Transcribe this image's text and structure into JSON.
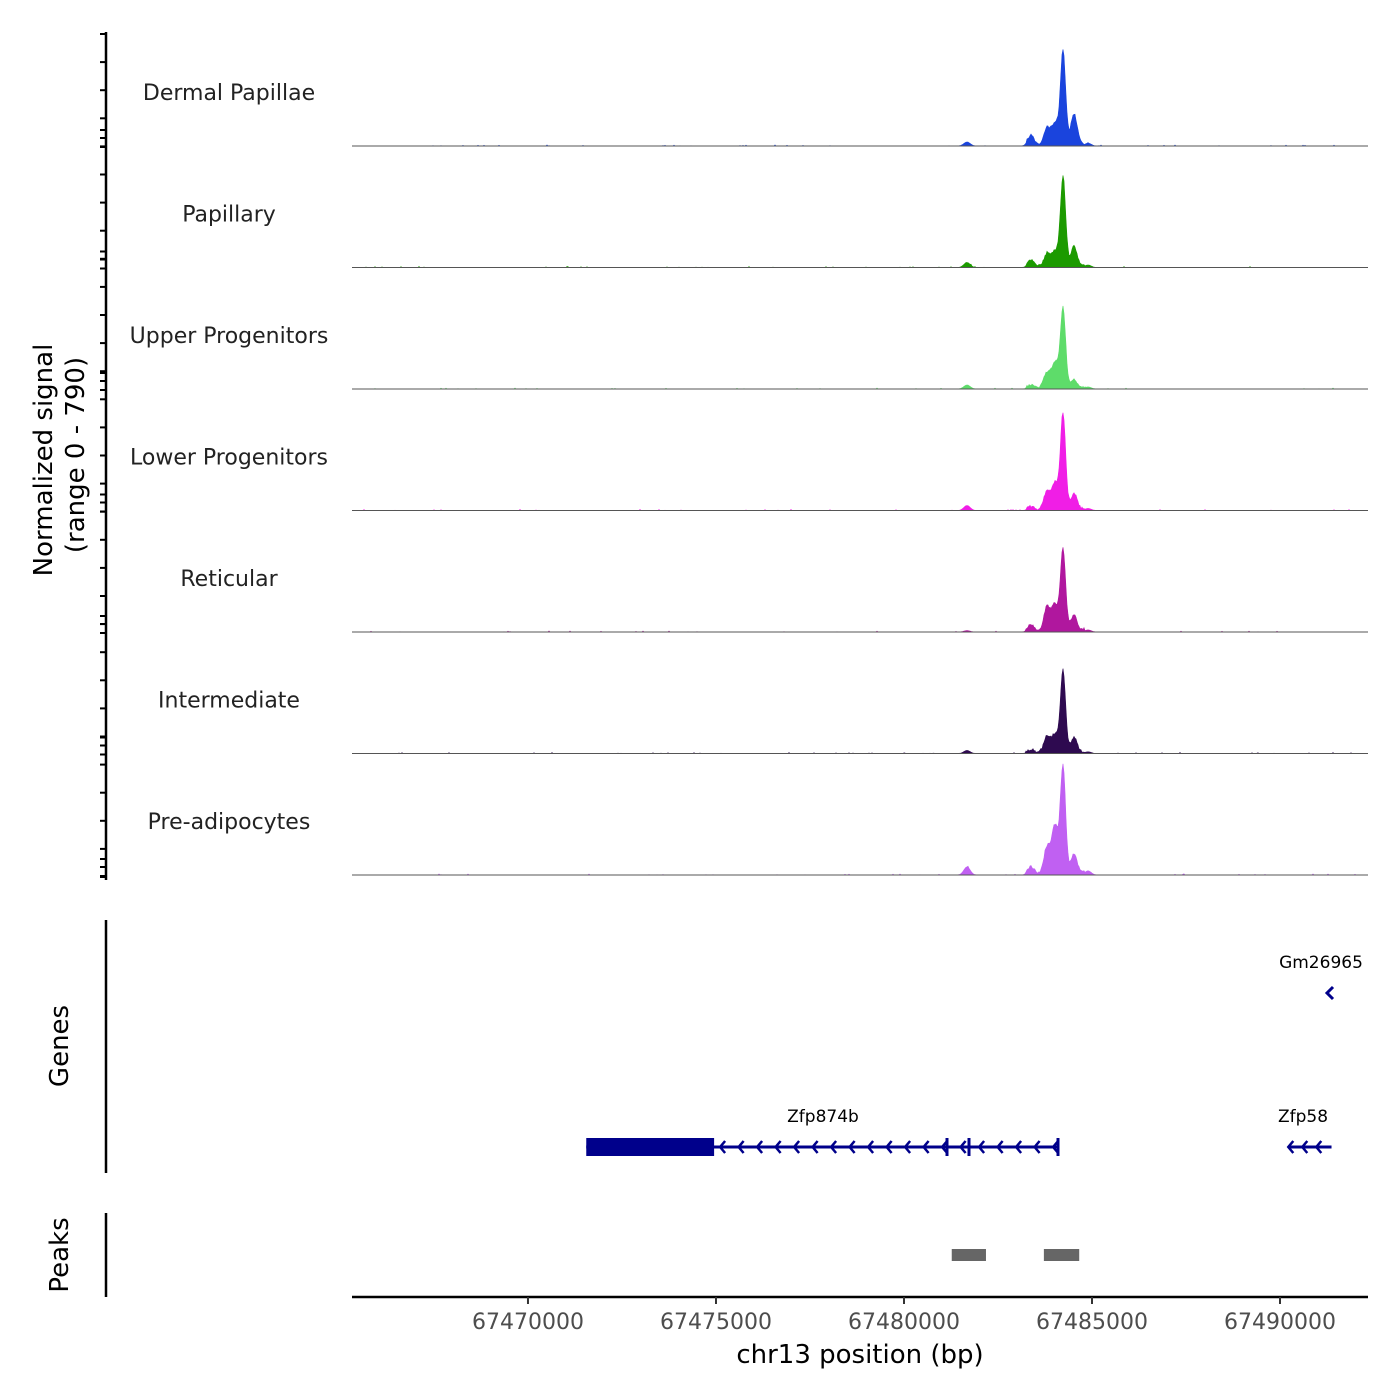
{
  "chart_data": {
    "type": "area",
    "title": "",
    "ylabel": "Normalized signal",
    "ylabel_sub": "(range 0 - 790)",
    "xlabel": "chr13 position (bp)",
    "ylim": [
      0,
      790
    ],
    "xlim": [
      67465320,
      67492340
    ],
    "xticks": [
      67470000,
      67475000,
      67480000,
      67485000,
      67490000
    ],
    "xtick_labels": [
      "67470000",
      "67475000",
      "67480000",
      "67485000",
      "67490000"
    ],
    "peak_positions": [
      67481676,
      67483378,
      67483803,
      67484016,
      67484229,
      67484521,
      67484894
    ],
    "series": [
      {
        "name": "Dermal Papillae",
        "color": "#1a44dd",
        "peak_values": [
          29,
          72,
          122,
          158,
          675,
          223,
          20
        ]
      },
      {
        "name": "Papillary",
        "color": "#1c9a00",
        "peak_values": [
          36,
          43,
          86,
          115,
          646,
          144,
          18
        ]
      },
      {
        "name": "Upper Progenitors",
        "color": "#5edc6a",
        "peak_values": [
          29,
          20,
          108,
          187,
          575,
          65,
          15
        ]
      },
      {
        "name": "Lower Progenitors",
        "color": "#f01ee6",
        "peak_values": [
          36,
          20,
          130,
          187,
          690,
          115,
          15
        ]
      },
      {
        "name": "Reticular",
        "color": "#b0179e",
        "peak_values": [
          10,
          43,
          172,
          187,
          589,
          115,
          15
        ]
      },
      {
        "name": "Intermediate",
        "color": "#2e0a50",
        "peak_values": [
          22,
          20,
          108,
          130,
          589,
          108,
          12
        ]
      },
      {
        "name": "Pre-adipocytes",
        "color": "#c060f2",
        "peak_values": [
          58,
          50,
          187,
          345,
          776,
          144,
          30
        ]
      }
    ],
    "genes_track": {
      "label": "Genes",
      "color": "#00008b",
      "genes": [
        {
          "name": "Gm26965",
          "start": 67491250,
          "end": 67491350,
          "strand": "-"
        },
        {
          "name": "Zfp874b",
          "start": 67471550,
          "end": 67484130,
          "cds_end": 67474950,
          "strand": "-"
        },
        {
          "name": "Zfp58",
          "start": 67490220,
          "end": 67491370,
          "strand": "-"
        }
      ]
    },
    "peaks_track": {
      "label": "Peaks",
      "color": "#666666",
      "peaks": [
        [
          67481270,
          67482180
        ],
        [
          67483720,
          67484660
        ]
      ]
    }
  }
}
